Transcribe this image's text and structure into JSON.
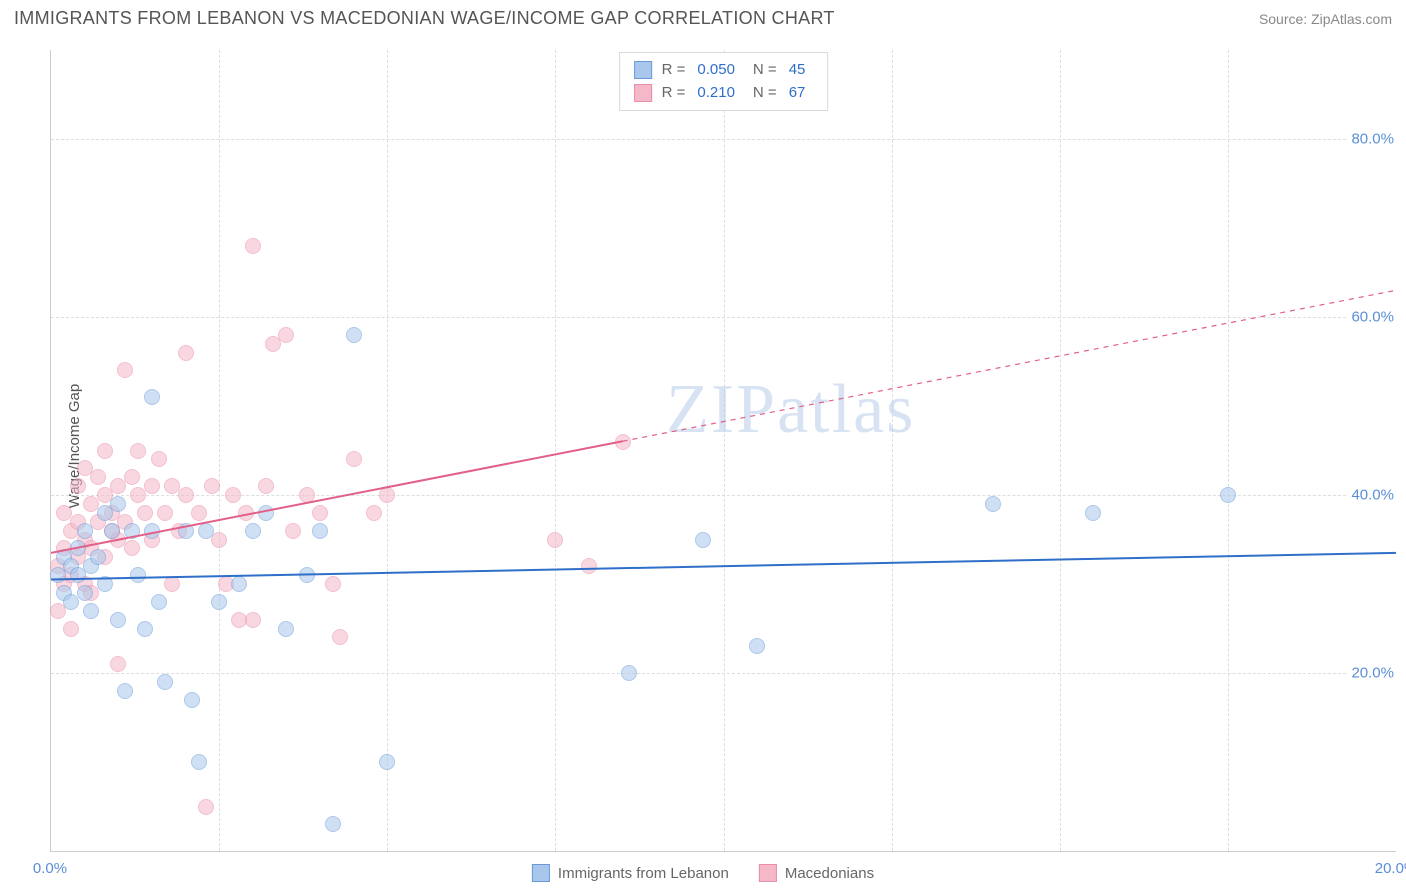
{
  "title": "IMMIGRANTS FROM LEBANON VS MACEDONIAN WAGE/INCOME GAP CORRELATION CHART",
  "source": "Source: ZipAtlas.com",
  "y_axis_label": "Wage/Income Gap",
  "watermark": "ZIPatlas",
  "chart": {
    "type": "scatter",
    "xlim": [
      0,
      20
    ],
    "ylim": [
      0,
      90
    ],
    "x_ticks": [
      0,
      20
    ],
    "x_tick_labels": [
      "0.0%",
      "20.0%"
    ],
    "y_ticks": [
      20,
      40,
      60,
      80
    ],
    "y_tick_labels": [
      "20.0%",
      "40.0%",
      "60.0%",
      "80.0%"
    ],
    "x_grid": [
      2.5,
      5.0,
      7.5,
      10.0,
      12.5,
      15.0,
      17.5
    ],
    "background_color": "#ffffff",
    "grid_color": "#dddddd",
    "axis_color": "#cccccc",
    "tick_label_color": "#5a8fd6",
    "tick_fontsize": 15,
    "title_fontsize": 18,
    "title_color": "#555555",
    "marker_radius": 8,
    "marker_opacity": 0.55,
    "line_width": 2
  },
  "series": {
    "a": {
      "label": "Immigrants from Lebanon",
      "fill": "#a9c7ec",
      "stroke": "#6a9bd8",
      "line_color": "#2f6fc9",
      "R": "0.050",
      "N": "45",
      "trend": {
        "y_at_x0": 30.5,
        "y_at_x20": 33.5,
        "solid_to_x": 20
      },
      "points": [
        [
          0.1,
          31
        ],
        [
          0.2,
          29
        ],
        [
          0.2,
          33
        ],
        [
          0.3,
          32
        ],
        [
          0.3,
          28
        ],
        [
          0.4,
          31
        ],
        [
          0.4,
          34
        ],
        [
          0.5,
          29
        ],
        [
          0.5,
          36
        ],
        [
          0.6,
          32
        ],
        [
          0.6,
          27
        ],
        [
          0.7,
          33
        ],
        [
          0.8,
          38
        ],
        [
          0.8,
          30
        ],
        [
          0.9,
          36
        ],
        [
          1.0,
          26
        ],
        [
          1.0,
          39
        ],
        [
          1.1,
          18
        ],
        [
          1.2,
          36
        ],
        [
          1.3,
          31
        ],
        [
          1.4,
          25
        ],
        [
          1.5,
          36
        ],
        [
          1.5,
          51
        ],
        [
          1.6,
          28
        ],
        [
          1.7,
          19
        ],
        [
          2.0,
          36
        ],
        [
          2.1,
          17
        ],
        [
          2.2,
          10
        ],
        [
          2.3,
          36
        ],
        [
          2.5,
          28
        ],
        [
          2.8,
          30
        ],
        [
          3.0,
          36
        ],
        [
          3.2,
          38
        ],
        [
          3.5,
          25
        ],
        [
          3.8,
          31
        ],
        [
          4.0,
          36
        ],
        [
          4.2,
          3
        ],
        [
          4.5,
          58
        ],
        [
          5.0,
          10
        ],
        [
          8.6,
          20
        ],
        [
          9.7,
          35
        ],
        [
          10.5,
          23
        ],
        [
          14.0,
          39
        ],
        [
          15.5,
          38
        ],
        [
          17.5,
          40
        ]
      ]
    },
    "b": {
      "label": "Macedonians",
      "fill": "#f5b8c8",
      "stroke": "#e98da8",
      "line_color": "#e26088",
      "R": "0.210",
      "N": "67",
      "trend": {
        "y_at_x0": 33.5,
        "y_at_x20": 63.0,
        "solid_to_x": 8.5
      },
      "points": [
        [
          0.1,
          32
        ],
        [
          0.1,
          27
        ],
        [
          0.2,
          30
        ],
        [
          0.2,
          34
        ],
        [
          0.2,
          38
        ],
        [
          0.3,
          36
        ],
        [
          0.3,
          31
        ],
        [
          0.3,
          25
        ],
        [
          0.4,
          33
        ],
        [
          0.4,
          37
        ],
        [
          0.4,
          41
        ],
        [
          0.5,
          35
        ],
        [
          0.5,
          30
        ],
        [
          0.5,
          43
        ],
        [
          0.6,
          39
        ],
        [
          0.6,
          34
        ],
        [
          0.6,
          29
        ],
        [
          0.7,
          37
        ],
        [
          0.7,
          42
        ],
        [
          0.8,
          40
        ],
        [
          0.8,
          45
        ],
        [
          0.8,
          33
        ],
        [
          0.9,
          38
        ],
        [
          0.9,
          36
        ],
        [
          1.0,
          41
        ],
        [
          1.0,
          35
        ],
        [
          1.0,
          21
        ],
        [
          1.1,
          37
        ],
        [
          1.1,
          54
        ],
        [
          1.2,
          42
        ],
        [
          1.2,
          34
        ],
        [
          1.3,
          40
        ],
        [
          1.3,
          45
        ],
        [
          1.4,
          38
        ],
        [
          1.5,
          41
        ],
        [
          1.5,
          35
        ],
        [
          1.6,
          44
        ],
        [
          1.7,
          38
        ],
        [
          1.8,
          41
        ],
        [
          1.8,
          30
        ],
        [
          1.9,
          36
        ],
        [
          2.0,
          56
        ],
        [
          2.0,
          40
        ],
        [
          2.2,
          38
        ],
        [
          2.3,
          5
        ],
        [
          2.4,
          41
        ],
        [
          2.5,
          35
        ],
        [
          2.6,
          30
        ],
        [
          2.7,
          40
        ],
        [
          2.8,
          26
        ],
        [
          2.9,
          38
        ],
        [
          3.0,
          26
        ],
        [
          3.0,
          68
        ],
        [
          3.2,
          41
        ],
        [
          3.3,
          57
        ],
        [
          3.5,
          58
        ],
        [
          3.6,
          36
        ],
        [
          3.8,
          40
        ],
        [
          4.0,
          38
        ],
        [
          4.2,
          30
        ],
        [
          4.3,
          24
        ],
        [
          4.5,
          44
        ],
        [
          4.8,
          38
        ],
        [
          5.0,
          40
        ],
        [
          7.5,
          35
        ],
        [
          8.0,
          32
        ],
        [
          8.5,
          46
        ]
      ]
    }
  },
  "legend_top": {
    "r_label": "R =",
    "n_label": "N ="
  }
}
